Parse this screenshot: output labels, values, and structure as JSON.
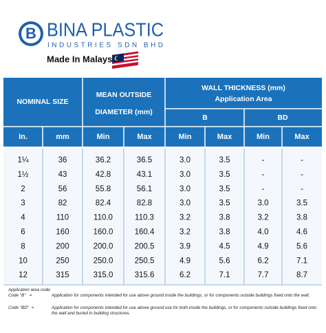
{
  "header": {
    "logo_letter": "B",
    "company": "BINA PLASTIC",
    "subtitle": "INDUSTRIES SDN BHD",
    "tagline": "Made In Malaysia"
  },
  "table": {
    "group_headers": [
      "NOMINAL SIZE",
      "MEAN OUTSIDE",
      "DIAMETER (mm)",
      "WALL THICKNESS (mm)",
      "Application Area",
      "B",
      "BD"
    ],
    "columns": [
      "In.",
      "mm",
      "Min",
      "Max",
      "Min",
      "Max",
      "Min",
      "Max"
    ],
    "rows": [
      [
        "1¼",
        "36",
        "36.2",
        "36.5",
        "3.0",
        "3.5",
        "-",
        "-"
      ],
      [
        "1½",
        "43",
        "42.8",
        "43.1",
        "3.0",
        "3.5",
        "-",
        "-"
      ],
      [
        "2",
        "56",
        "55.8",
        "56.1",
        "3.0",
        "3.5",
        "-",
        "-"
      ],
      [
        "3",
        "82",
        "82.4",
        "82.8",
        "3.0",
        "3.5",
        "3.0",
        "3.5"
      ],
      [
        "4",
        "110",
        "110.0",
        "110.3",
        "3.2",
        "3.8",
        "3.2",
        "3.8"
      ],
      [
        "6",
        "160",
        "160.0",
        "160.4",
        "3.2",
        "3.8",
        "4.0",
        "4.6"
      ],
      [
        "8",
        "200",
        "200.0",
        "200.5",
        "3.9",
        "4.5",
        "4.9",
        "5.6"
      ],
      [
        "10",
        "250",
        "250.0",
        "250.5",
        "4.9",
        "5.6",
        "6.2",
        "7.1"
      ],
      [
        "12",
        "315",
        "315.0",
        "315.6",
        "6.2",
        "7.1",
        "7.7",
        "8.7"
      ]
    ]
  },
  "notes": {
    "title": "Application area code:",
    "items": [
      {
        "code": "Code \"B\"   =",
        "text": "Application for components intended for use above ground inside the buildings, or for components outside buildings fixed onto the wall."
      },
      {
        "code": "Code \"BD\"  =",
        "text": "Application for components intended for use above ground use for both inside the buildings, or for components outside buildings fixed onto the wall and buried in building structures."
      }
    ]
  }
}
